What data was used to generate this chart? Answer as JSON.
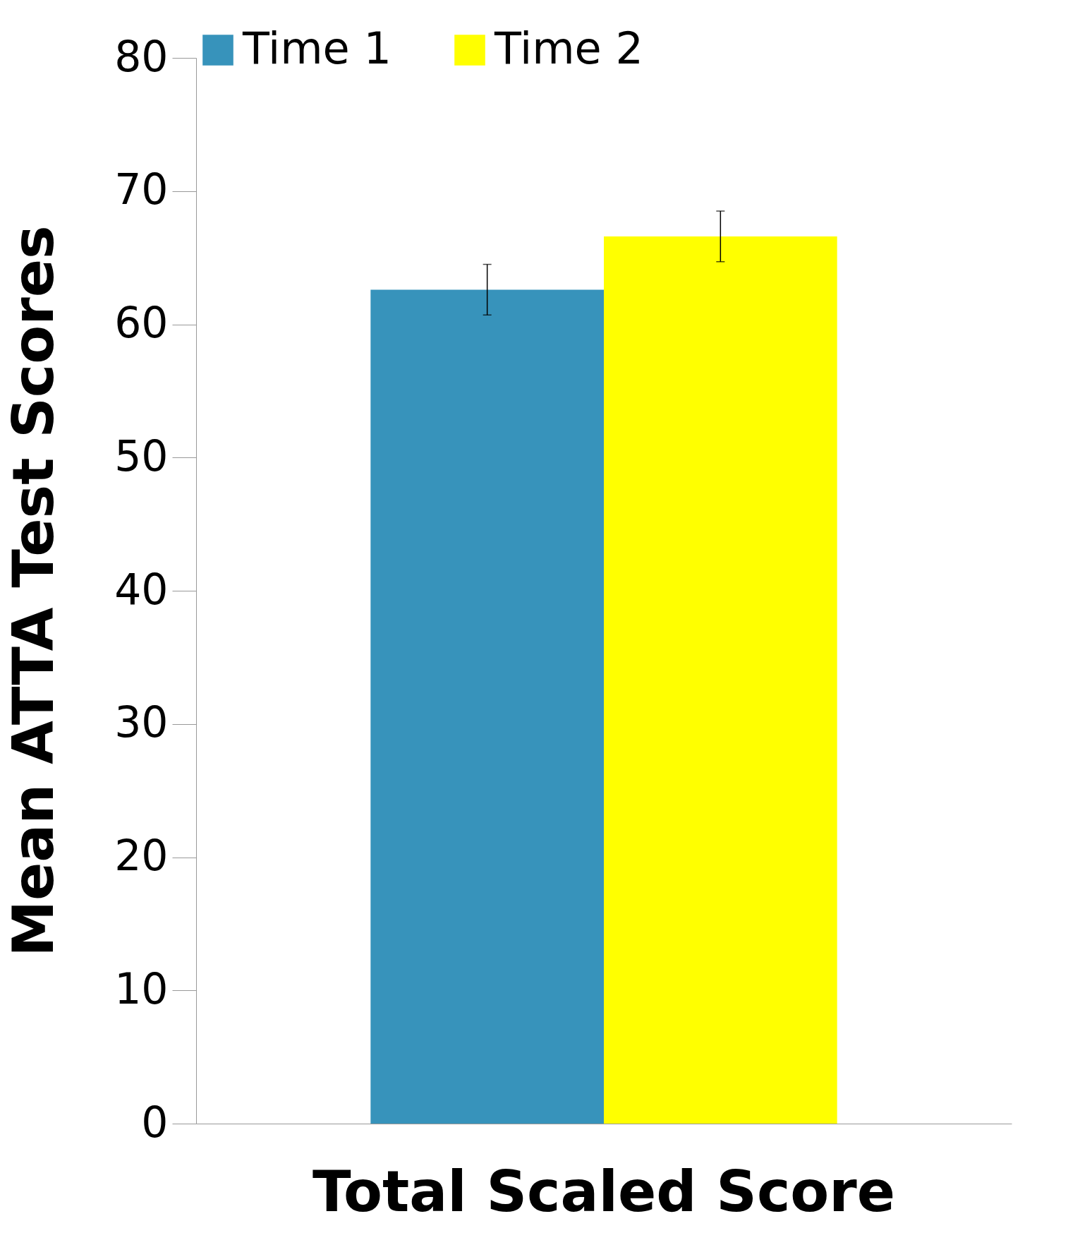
{
  "chart_data": {
    "type": "bar",
    "ylabel": "Mean ATTA Test Scores",
    "categories": [
      "Total Scaled Score"
    ],
    "series": [
      {
        "name": "Time 1",
        "color": "#3793bb",
        "values": [
          62.6
        ],
        "errors": [
          1.9
        ]
      },
      {
        "name": "Time 2",
        "color": "#ffff00",
        "values": [
          66.6
        ],
        "errors": [
          1.9
        ]
      }
    ],
    "ylim": [
      0,
      80
    ],
    "yticks": [
      0,
      10,
      20,
      30,
      40,
      50,
      60,
      70,
      80
    ],
    "grid": false,
    "legend": "top"
  }
}
